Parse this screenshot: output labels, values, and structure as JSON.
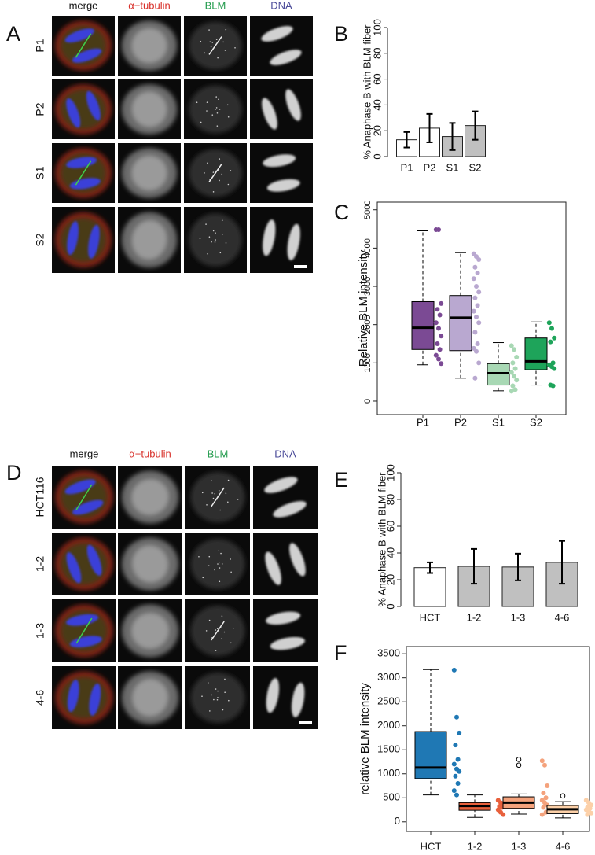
{
  "figure": {
    "panel_a": {
      "letter": "A",
      "columns": [
        "merge",
        "α−tubulin",
        "BLM",
        "DNA"
      ],
      "rows": [
        "P1",
        "P2",
        "S1",
        "S2"
      ]
    },
    "panel_d": {
      "letter": "D",
      "columns": [
        "merge",
        "α−tubulin",
        "BLM",
        "DNA"
      ],
      "rows": [
        "HCT116",
        "1-2",
        "1-3",
        "4-6"
      ]
    }
  },
  "chart_data": [
    {
      "type": "bar",
      "panel_label": "B",
      "ylabel": "% Anaphase B with BLM fiber",
      "categories": [
        "P1",
        "P2",
        "S1",
        "S2"
      ],
      "values": [
        13,
        22,
        15.5,
        24
      ],
      "errors": [
        6,
        11,
        10.5,
        11
      ],
      "colors": [
        "#ffffff",
        "#ffffff",
        "#c0c0c0",
        "#c0c0c0"
      ],
      "ylim": [
        0,
        100
      ],
      "yticks": [
        0,
        20,
        40,
        60,
        80,
        100
      ]
    },
    {
      "type": "box",
      "panel_label": "C",
      "ylabel": "Relative BLM intensity",
      "categories": [
        "P1",
        "P2",
        "S1",
        "S2"
      ],
      "boxes": [
        {
          "color": "#7b4a94",
          "whisker_low": 950,
          "q1": 1350,
          "median": 1920,
          "q3": 2600,
          "whisker_high": 4450,
          "outliers": [],
          "points": [
            4480,
            4480,
            2550,
            2400,
            2250,
            2050,
            1900,
            1700,
            1500,
            1350,
            1200,
            1100,
            980
          ]
        },
        {
          "color": "#b9a8d0",
          "whisker_low": 600,
          "q1": 1320,
          "median": 2180,
          "q3": 2760,
          "whisker_high": 3880,
          "outliers": [],
          "points": [
            3850,
            3780,
            3700,
            3500,
            3350,
            3200,
            3000,
            2850,
            2700,
            2500,
            2350,
            2200,
            2050,
            1800,
            1500,
            1380,
            1300,
            1000,
            600
          ]
        },
        {
          "color": "#a8d8b4",
          "whisker_low": 270,
          "q1": 420,
          "median": 730,
          "q3": 980,
          "whisker_high": 1530,
          "outliers": [],
          "points": [
            1450,
            1350,
            1150,
            1000,
            850,
            750,
            650,
            550,
            400,
            300,
            260
          ]
        },
        {
          "color": "#1ea45a",
          "whisker_low": 420,
          "q1": 820,
          "median": 1040,
          "q3": 1650,
          "whisker_high": 2070,
          "outliers": [],
          "points": [
            2050,
            1900,
            1650,
            1550,
            1000,
            950,
            900,
            850,
            420,
            400
          ]
        }
      ],
      "ylim": [
        -350,
        5200
      ],
      "yticks": [
        0,
        1000,
        2000,
        3000,
        4000,
        5000
      ]
    },
    {
      "type": "bar",
      "panel_label": "E",
      "ylabel": "% Anaphase B with BLM fiber",
      "categories": [
        "HCT",
        "1-2",
        "1-3",
        "4-6"
      ],
      "values": [
        29,
        30,
        29.5,
        33
      ],
      "errors": [
        4,
        13,
        10,
        16
      ],
      "colors": [
        "#ffffff",
        "#c0c0c0",
        "#c0c0c0",
        "#c0c0c0"
      ],
      "ylim": [
        0,
        100
      ],
      "yticks": [
        0,
        20,
        40,
        60,
        80,
        100
      ]
    },
    {
      "type": "box",
      "panel_label": "F",
      "ylabel": "relative BLM intensity",
      "categories": [
        "HCT",
        "1-2",
        "1-3",
        "4-6"
      ],
      "boxes": [
        {
          "color": "#1f78b4",
          "whisker_low": 560,
          "q1": 900,
          "median": 1130,
          "q3": 1880,
          "whisker_high": 3170,
          "outliers": [],
          "points": [
            3160,
            2180,
            1850,
            1600,
            1300,
            1200,
            1100,
            1050,
            950,
            800,
            650,
            560
          ]
        },
        {
          "color": "#e8603c",
          "whisker_low": 90,
          "q1": 240,
          "median": 330,
          "q3": 400,
          "whisker_high": 560,
          "outliers": [],
          "points": [
            450,
            400,
            350,
            320,
            300,
            250,
            200,
            150
          ]
        },
        {
          "color": "#f4a27c",
          "whisker_low": 160,
          "q1": 280,
          "median": 400,
          "q3": 520,
          "whisker_high": 580,
          "outliers": [
            1300,
            1180
          ],
          "points": [
            1270,
            1180,
            750,
            600,
            500,
            450,
            400,
            350,
            300,
            200,
            150
          ]
        },
        {
          "color": "#fcd0a8",
          "whisker_low": 80,
          "q1": 170,
          "median": 260,
          "q3": 340,
          "whisker_high": 420,
          "outliers": [
            540
          ],
          "points": [
            450,
            400,
            350,
            300,
            280,
            250,
            220,
            180,
            150
          ]
        }
      ],
      "ylim": [
        -200,
        3650
      ],
      "yticks": [
        0,
        500,
        1000,
        1500,
        2000,
        2500,
        3000,
        3500
      ]
    }
  ]
}
